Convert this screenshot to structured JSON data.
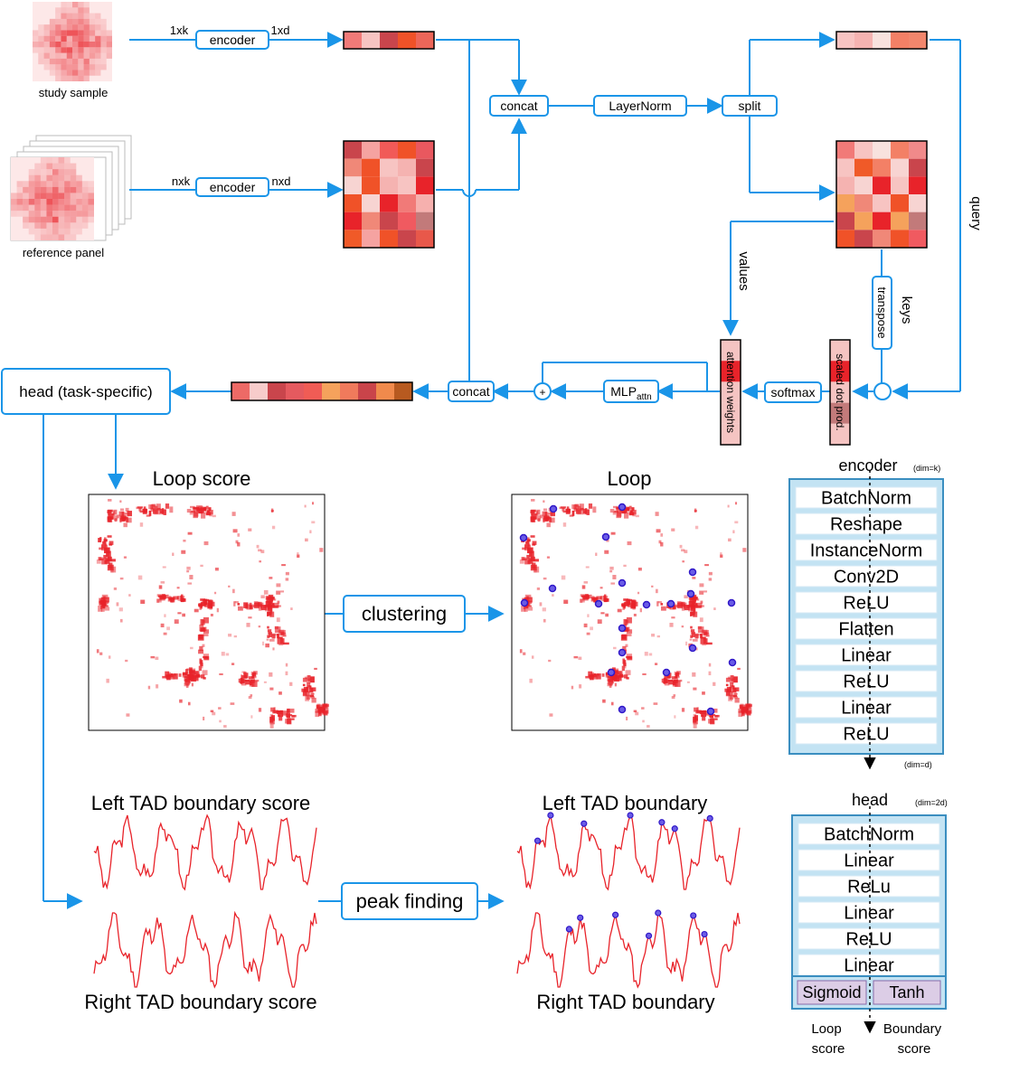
{
  "inputs": {
    "study_label": "study sample",
    "reference_label": "reference panel"
  },
  "dims": {
    "study_in": "1xk",
    "study_out": "1xd",
    "ref_in": "nxk",
    "ref_out": "nxd"
  },
  "blocks": {
    "encoder": "encoder",
    "concat": "concat",
    "layernorm": "LayerNorm",
    "split": "split",
    "softmax": "softmax",
    "mlp": "MLP",
    "mlp_sub": "attn",
    "plus": "+",
    "head": "head (task-specific)",
    "transpose": "transpose",
    "scaled_dot": "scaled dot prod.",
    "attention": "attention weights"
  },
  "edge_labels": {
    "query": "query",
    "keys": "keys",
    "values": "values"
  },
  "outputs": {
    "loop_score": "Loop score",
    "loop": "Loop",
    "clustering": "clustering",
    "peak_finding": "peak finding",
    "left_score": "Left TAD boundary score",
    "right_score": "Right TAD boundary score",
    "left": "Left TAD boundary",
    "right": "Right TAD boundary"
  },
  "encoder_stack": {
    "title": "encoder",
    "title_dim": "(dim=k)",
    "out_dim": "(dim=d)",
    "layers": [
      "BatchNorm",
      "Reshape",
      "InstanceNorm",
      "Conv2D",
      "ReLU",
      "Flatten",
      "Linear",
      "ReLU",
      "Linear",
      "ReLU"
    ]
  },
  "head_stack": {
    "title": "head",
    "title_dim": "(dim=2d)",
    "layers": [
      "BatchNorm",
      "Linear",
      "ReLu",
      "Linear",
      "ReLU",
      "Linear"
    ],
    "final": [
      "Sigmoid",
      "Tanh"
    ],
    "out_left": [
      "Loop",
      "score"
    ],
    "out_right": [
      "Boundary",
      "score"
    ]
  },
  "colors": {
    "arrow": "#1a95e8",
    "block_border": "#1a95e8",
    "stack_fill": "#c3e3f3",
    "final_fill": "#dccde6",
    "heat": "#e8232a",
    "marker": "#3018c8"
  },
  "heat_vectors": {
    "study": [
      "#f17a78",
      "#f7c4c2",
      "#c9454c",
      "#f05228",
      "#ed6659"
    ],
    "query": [
      "#f7c4c2",
      "#f5b3b1",
      "#f8e2de",
      "#f38066",
      "#f2866c"
    ],
    "combined": [
      "#ed6a66",
      "#f7cccb",
      "#c9454c",
      "#e55a5f",
      "#f05c55",
      "#f5a25c",
      "#f07a5c",
      "#c9444a",
      "#f08a4c",
      "#b75a20"
    ]
  },
  "heat_matrices": {
    "reference": [
      [
        "#c9454c",
        "#f5a3a1",
        "#f15a58",
        "#f05228",
        "#e9585f"
      ],
      [
        "#f08878",
        "#f05228",
        "#f7c4c2",
        "#f5b3b1",
        "#c9454c"
      ],
      [
        "#f7d4d2",
        "#f05228",
        "#f5b3b1",
        "#f7c4c2",
        "#e8232a"
      ],
      [
        "#f05228",
        "#f7d4d2",
        "#e8232a",
        "#f17a78",
        "#f6b0ae"
      ],
      [
        "#e8232a",
        "#f08878",
        "#c9454c",
        "#f05a60",
        "#c27a7a"
      ],
      [
        "#f05a28",
        "#f5a3a1",
        "#f05228",
        "#c9454c",
        "#e8584a"
      ]
    ],
    "keys": [
      [
        "#f17a78",
        "#f7c4c2",
        "#f8e2de",
        "#f38066",
        "#f08a8a"
      ],
      [
        "#f7c4c2",
        "#f05a28",
        "#f38066",
        "#f8d4d2",
        "#c9454c"
      ],
      [
        "#f5b3b1",
        "#f7d4d2",
        "#e8232a",
        "#f7c4c2",
        "#e8232a"
      ],
      [
        "#f5a25c",
        "#f08878",
        "#f7c4c2",
        "#f05228",
        "#f7d4d2"
      ],
      [
        "#c9454c",
        "#f5a25c",
        "#e8232a",
        "#f5a25c",
        "#c27a7a"
      ],
      [
        "#f05228",
        "#c9454c",
        "#f08878",
        "#f05228",
        "#f05a60"
      ]
    ]
  },
  "attention_cells": [
    "#f5c4c2",
    "#e8232a",
    "#f5c4c2",
    "#f5c4c2",
    "#f5c4c2"
  ],
  "scaled_cells": [
    "#f5c4c2",
    "#e8232a",
    "#f5c4c2",
    "#c27a7a",
    "#f5c4c2"
  ]
}
